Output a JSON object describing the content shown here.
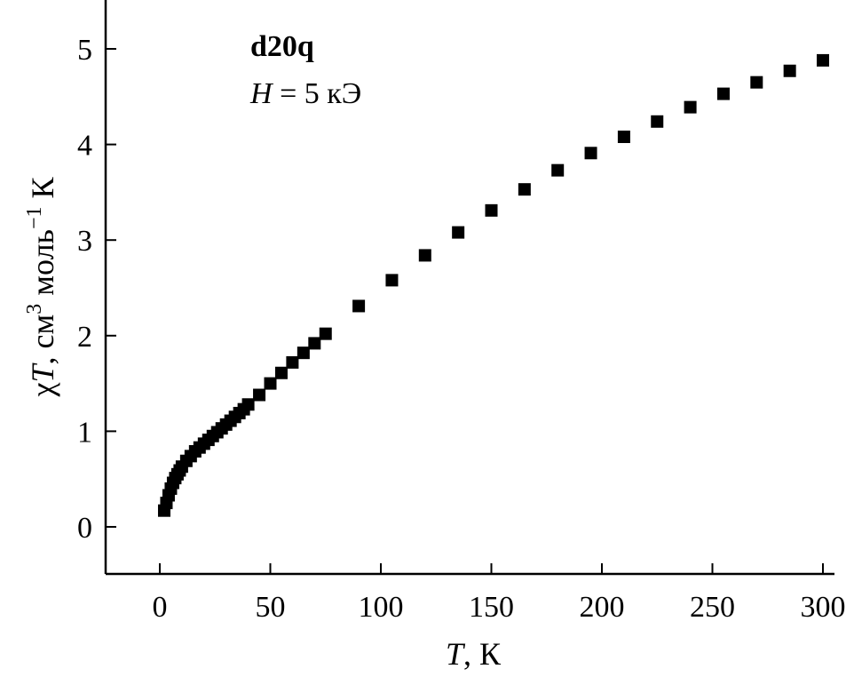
{
  "chart_data": {
    "type": "scatter",
    "annotation_sample": "d20q",
    "annotation_field_symbol": "H",
    "annotation_field_rest": " = 5 кЭ",
    "xlabel_symbol": "T",
    "xlabel_rest": ", К",
    "ylabel_prefix": "χ",
    "ylabel_symbol": "T",
    "ylabel_mid": ", см",
    "ylabel_sup1": "3",
    "ylabel_mid2": " моль",
    "ylabel_sup2": "−1",
    "ylabel_end": " К",
    "xlim": [
      -25,
      302
    ],
    "ylim": [
      -0.5,
      5.5
    ],
    "x_ticks": [
      0,
      50,
      100,
      150,
      200,
      250,
      300
    ],
    "y_ticks": [
      0,
      1,
      2,
      3,
      4,
      5
    ],
    "marker": "square",
    "marker_color": "#000000",
    "x": [
      2,
      3,
      4,
      5,
      6,
      7,
      8,
      9,
      10,
      12,
      14,
      16,
      18,
      20,
      22,
      24,
      26,
      28,
      30,
      32,
      34,
      36,
      38,
      40,
      45,
      50,
      55,
      60,
      65,
      70,
      75,
      90,
      105,
      120,
      135,
      150,
      165,
      180,
      195,
      210,
      225,
      240,
      255,
      270,
      285,
      300
    ],
    "y": [
      0.17,
      0.25,
      0.33,
      0.4,
      0.46,
      0.51,
      0.55,
      0.59,
      0.63,
      0.69,
      0.74,
      0.79,
      0.83,
      0.87,
      0.91,
      0.95,
      0.99,
      1.03,
      1.07,
      1.11,
      1.15,
      1.19,
      1.23,
      1.28,
      1.38,
      1.5,
      1.61,
      1.72,
      1.82,
      1.92,
      2.02,
      2.31,
      2.58,
      2.84,
      3.08,
      3.31,
      3.53,
      3.73,
      3.91,
      4.08,
      4.24,
      4.39,
      4.53,
      4.65,
      4.77,
      4.88
    ]
  }
}
